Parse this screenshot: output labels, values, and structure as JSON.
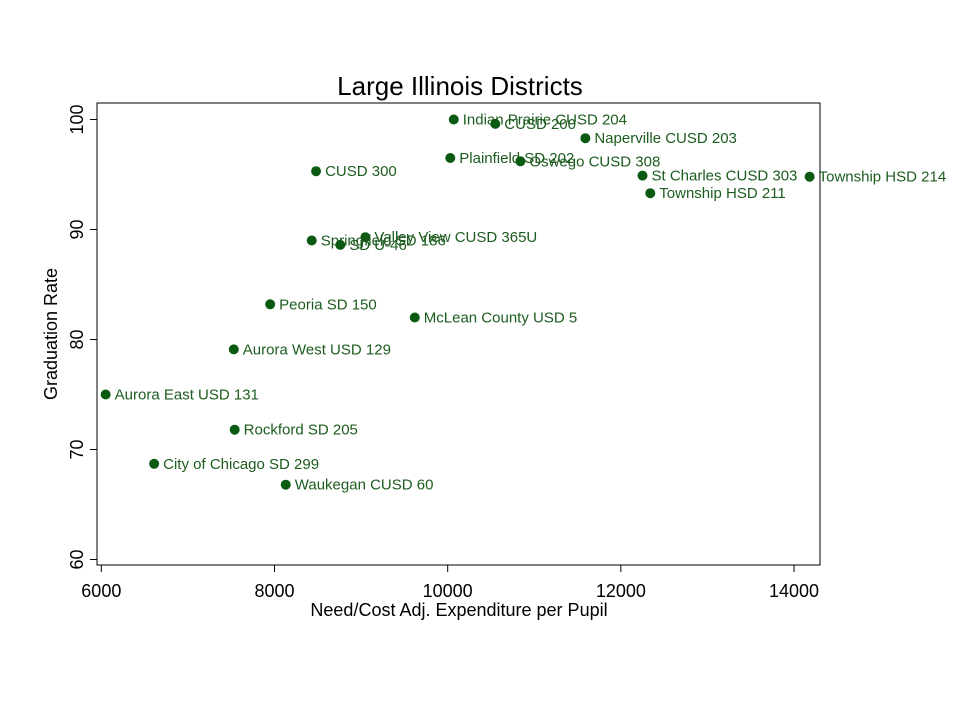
{
  "chart_data": {
    "type": "scatter",
    "title": "Large Illinois Districts",
    "xlabel": "Need/Cost Adj. Expenditure per Pupil",
    "ylabel": "Graduation Rate",
    "xlim": [
      5950,
      14300
    ],
    "ylim": [
      59.5,
      101.5
    ],
    "xticks": [
      "6000",
      "8000",
      "10000",
      "12000",
      "14000"
    ],
    "xtick_values": [
      6000,
      8000,
      10000,
      12000,
      14000
    ],
    "yticks": [
      "60",
      "70",
      "80",
      "90",
      "100"
    ],
    "ytick_values": [
      60,
      70,
      80,
      90,
      100
    ],
    "grid": false,
    "marker_color": "#0b5a12",
    "label_color": "#1d5c1f",
    "points": [
      {
        "label": "Indian Prairie CUSD 204",
        "x": 10070,
        "y": 100.0
      },
      {
        "label": "CUSD 200",
        "x": 10550,
        "y": 99.6
      },
      {
        "label": "Naperville CUSD 203",
        "x": 11590,
        "y": 98.3
      },
      {
        "label": "Plainfield SD 202",
        "x": 10030,
        "y": 96.5
      },
      {
        "label": "Oswego CUSD 308",
        "x": 10840,
        "y": 96.2
      },
      {
        "label": "CUSD 300",
        "x": 8480,
        "y": 95.3
      },
      {
        "label": "St Charles CUSD 303",
        "x": 12250,
        "y": 94.9
      },
      {
        "label": "Township HSD 214",
        "x": 14180,
        "y": 94.8
      },
      {
        "label": "Township HSD 211",
        "x": 12340,
        "y": 93.3
      },
      {
        "label": "Valley View CUSD 365U",
        "x": 9050,
        "y": 89.3
      },
      {
        "label": "Springfield SD 186",
        "x": 8430,
        "y": 89.0
      },
      {
        "label": "SD U-46",
        "x": 8760,
        "y": 88.6
      },
      {
        "label": "Peoria SD 150",
        "x": 7950,
        "y": 83.2
      },
      {
        "label": "McLean County USD 5",
        "x": 9620,
        "y": 82.0
      },
      {
        "label": "Aurora West USD 129",
        "x": 7530,
        "y": 79.1
      },
      {
        "label": "Aurora East USD 131",
        "x": 6050,
        "y": 75.0
      },
      {
        "label": "Rockford SD 205",
        "x": 7540,
        "y": 71.8
      },
      {
        "label": "City of Chicago SD 299",
        "x": 6610,
        "y": 68.7
      },
      {
        "label": "Waukegan CUSD 60",
        "x": 8130,
        "y": 66.8
      }
    ]
  }
}
